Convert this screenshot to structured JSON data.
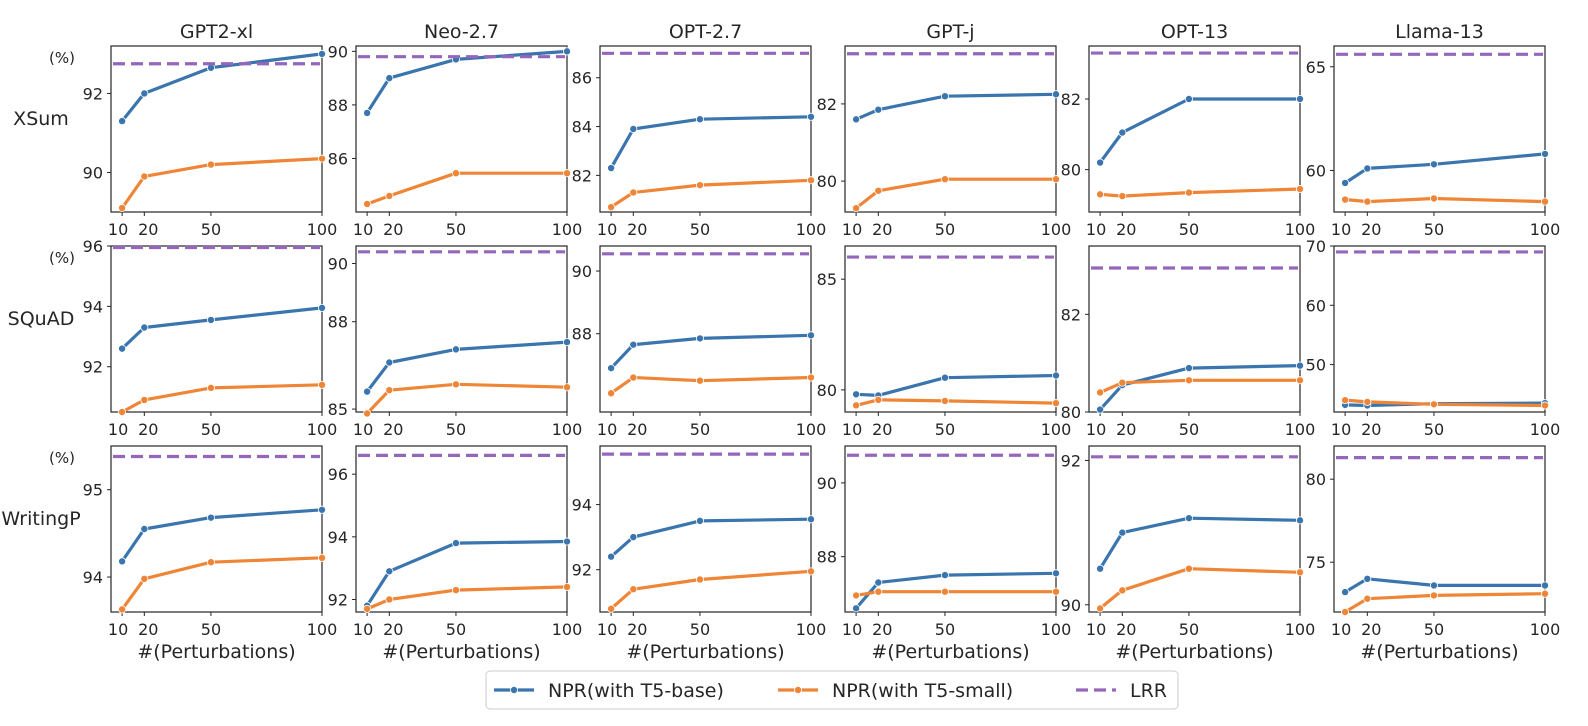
{
  "colors": {
    "npr_base": "#3a75ae",
    "npr_small": "#ef8536",
    "lrr": "#9467bd",
    "frame": "#262626"
  },
  "columns": [
    "GPT2-xl",
    "Neo-2.7",
    "OPT-2.7",
    "GPT-j",
    "OPT-13",
    "Llama-13"
  ],
  "rows": [
    "XSum",
    "SQuAD",
    "WritingP"
  ],
  "x_ticks": [
    "10",
    "20",
    "50",
    "100"
  ],
  "unit_label": "(%)",
  "xlabel": "#(Perturbations)",
  "legend": {
    "placement": "bottom-center",
    "items": [
      {
        "key": "npr_base",
        "label": "NPR(with T5-base)",
        "style": "solid-marker"
      },
      {
        "key": "npr_small",
        "label": "NPR(with T5-small)",
        "style": "solid-marker"
      },
      {
        "key": "lrr",
        "label": "LRR",
        "style": "dashed"
      }
    ]
  },
  "chart_data": {
    "type": "line",
    "layout": "grid 3 rows x 6 columns",
    "x": [
      10,
      20,
      50,
      100
    ],
    "xlim": [
      5,
      100
    ],
    "xlabel": "#(Perturbations)",
    "panels": [
      {
        "row": "XSum",
        "column": "GPT2-xl",
        "ylim": [
          89.0,
          93.2
        ],
        "yticks": [
          90,
          92
        ],
        "show_unit": true,
        "series": [
          {
            "name": "NPR(with T5-base)",
            "values": [
              91.3,
              92.0,
              92.65,
              93.0
            ]
          },
          {
            "name": "NPR(with T5-small)",
            "values": [
              89.1,
              89.9,
              90.2,
              90.35
            ]
          },
          {
            "name": "LRR",
            "constant": 92.75
          }
        ]
      },
      {
        "row": "XSum",
        "column": "Neo-2.7",
        "ylim": [
          84.0,
          90.2
        ],
        "yticks": [
          86,
          88,
          90
        ],
        "show_unit": false,
        "series": [
          {
            "name": "NPR(with T5-base)",
            "values": [
              87.7,
              89.0,
              89.7,
              90.0
            ]
          },
          {
            "name": "NPR(with T5-small)",
            "values": [
              84.3,
              84.6,
              85.45,
              85.45
            ]
          },
          {
            "name": "LRR",
            "constant": 89.8
          }
        ]
      },
      {
        "row": "XSum",
        "column": "OPT-2.7",
        "ylim": [
          80.5,
          87.3
        ],
        "yticks": [
          82,
          84,
          86
        ],
        "show_unit": false,
        "series": [
          {
            "name": "NPR(with T5-base)",
            "values": [
              82.3,
              83.9,
              84.3,
              84.4
            ]
          },
          {
            "name": "NPR(with T5-small)",
            "values": [
              80.7,
              81.3,
              81.6,
              81.8
            ]
          },
          {
            "name": "LRR",
            "constant": 87.0
          }
        ]
      },
      {
        "row": "XSum",
        "column": "GPT-j",
        "ylim": [
          79.2,
          83.5
        ],
        "yticks": [
          80,
          82
        ],
        "show_unit": false,
        "series": [
          {
            "name": "NPR(with T5-base)",
            "values": [
              81.6,
              81.85,
              82.2,
              82.25
            ]
          },
          {
            "name": "NPR(with T5-small)",
            "values": [
              79.3,
              79.75,
              80.05,
              80.05
            ]
          },
          {
            "name": "LRR",
            "constant": 83.3
          }
        ]
      },
      {
        "row": "XSum",
        "column": "OPT-13",
        "ylim": [
          78.8,
          83.5
        ],
        "yticks": [
          80,
          82
        ],
        "show_unit": false,
        "series": [
          {
            "name": "NPR(with T5-base)",
            "values": [
              80.2,
              81.05,
              82.0,
              82.0
            ]
          },
          {
            "name": "NPR(with T5-small)",
            "values": [
              79.3,
              79.25,
              79.35,
              79.45
            ]
          },
          {
            "name": "LRR",
            "constant": 83.3
          }
        ]
      },
      {
        "row": "XSum",
        "column": "Llama-13",
        "ylim": [
          58.0,
          66.0
        ],
        "yticks": [
          60,
          65
        ],
        "show_unit": false,
        "series": [
          {
            "name": "NPR(with T5-base)",
            "values": [
              59.4,
              60.1,
              60.3,
              60.8
            ]
          },
          {
            "name": "NPR(with T5-small)",
            "values": [
              58.6,
              58.5,
              58.65,
              58.5
            ]
          },
          {
            "name": "LRR",
            "constant": 65.6
          }
        ]
      },
      {
        "row": "SQuAD",
        "column": "GPT2-xl",
        "ylim": [
          90.5,
          96.0
        ],
        "yticks": [
          92,
          94,
          96
        ],
        "show_unit": true,
        "series": [
          {
            "name": "NPR(with T5-base)",
            "values": [
              92.6,
              93.3,
              93.55,
              93.95
            ]
          },
          {
            "name": "NPR(with T5-small)",
            "values": [
              90.5,
              90.9,
              91.3,
              91.4
            ]
          },
          {
            "name": "LRR",
            "constant": 95.95
          }
        ]
      },
      {
        "row": "SQuAD",
        "column": "Neo-2.7",
        "ylim": [
          84.9,
          90.6
        ],
        "yticks": [
          85,
          88,
          90
        ],
        "show_unit": false,
        "series": [
          {
            "name": "NPR(with T5-base)",
            "values": [
              85.6,
              86.6,
              87.05,
              87.3
            ]
          },
          {
            "name": "NPR(with T5-small)",
            "values": [
              84.85,
              85.65,
              85.85,
              85.75
            ]
          },
          {
            "name": "LRR",
            "constant": 90.4
          }
        ]
      },
      {
        "row": "SQuAD",
        "column": "OPT-2.7",
        "ylim": [
          85.5,
          90.8
        ],
        "yticks": [
          88,
          90
        ],
        "show_unit": false,
        "series": [
          {
            "name": "NPR(with T5-base)",
            "values": [
              86.9,
              87.65,
              87.85,
              87.95
            ]
          },
          {
            "name": "NPR(with T5-small)",
            "values": [
              86.1,
              86.6,
              86.5,
              86.6
            ]
          },
          {
            "name": "LRR",
            "constant": 90.55
          }
        ]
      },
      {
        "row": "SQuAD",
        "column": "GPT-j",
        "ylim": [
          79.0,
          86.5
        ],
        "yticks": [
          80,
          85
        ],
        "show_unit": false,
        "series": [
          {
            "name": "NPR(with T5-base)",
            "values": [
              79.8,
              79.75,
              80.55,
              80.65
            ]
          },
          {
            "name": "NPR(with T5-small)",
            "values": [
              79.3,
              79.55,
              79.5,
              79.4
            ]
          },
          {
            "name": "LRR",
            "constant": 86.0
          }
        ]
      },
      {
        "row": "SQuAD",
        "column": "OPT-13",
        "ylim": [
          80.0,
          83.4
        ],
        "yticks": [
          80,
          82
        ],
        "show_unit": false,
        "series": [
          {
            "name": "NPR(with T5-base)",
            "values": [
              80.05,
              80.55,
              80.9,
              80.95
            ]
          },
          {
            "name": "NPR(with T5-small)",
            "values": [
              80.4,
              80.6,
              80.65,
              80.65
            ]
          },
          {
            "name": "LRR",
            "constant": 82.95
          }
        ]
      },
      {
        "row": "SQuAD",
        "column": "Llama-13",
        "ylim": [
          42.0,
          70.0
        ],
        "yticks": [
          50,
          60,
          70
        ],
        "show_unit": false,
        "series": [
          {
            "name": "NPR(with T5-base)",
            "values": [
              43.2,
              43.1,
              43.4,
              43.5
            ]
          },
          {
            "name": "NPR(with T5-small)",
            "values": [
              44.0,
              43.7,
              43.3,
              43.1
            ]
          },
          {
            "name": "LRR",
            "constant": 69.0
          }
        ]
      },
      {
        "row": "WritingP",
        "column": "GPT2-xl",
        "ylim": [
          93.6,
          95.5
        ],
        "yticks": [
          94,
          95
        ],
        "show_unit": true,
        "series": [
          {
            "name": "NPR(with T5-base)",
            "values": [
              94.18,
              94.55,
              94.68,
              94.77
            ]
          },
          {
            "name": "NPR(with T5-small)",
            "values": [
              93.63,
              93.98,
              94.17,
              94.22
            ]
          },
          {
            "name": "LRR",
            "constant": 95.38
          }
        ]
      },
      {
        "row": "WritingP",
        "column": "Neo-2.7",
        "ylim": [
          91.6,
          96.9
        ],
        "yticks": [
          92,
          94,
          96
        ],
        "show_unit": false,
        "series": [
          {
            "name": "NPR(with T5-base)",
            "values": [
              91.8,
              92.9,
              93.8,
              93.85
            ]
          },
          {
            "name": "NPR(with T5-small)",
            "values": [
              91.7,
              92.0,
              92.3,
              92.4
            ]
          },
          {
            "name": "LRR",
            "constant": 96.6
          }
        ]
      },
      {
        "row": "WritingP",
        "column": "OPT-2.7",
        "ylim": [
          90.7,
          95.8
        ],
        "yticks": [
          92,
          94
        ],
        "show_unit": false,
        "series": [
          {
            "name": "NPR(with T5-base)",
            "values": [
              92.4,
              93.0,
              93.5,
              93.55
            ]
          },
          {
            "name": "NPR(with T5-small)",
            "values": [
              90.8,
              91.4,
              91.7,
              91.95
            ]
          },
          {
            "name": "LRR",
            "constant": 95.55
          }
        ]
      },
      {
        "row": "WritingP",
        "column": "GPT-j",
        "ylim": [
          86.5,
          91.0
        ],
        "yticks": [
          88,
          90
        ],
        "show_unit": false,
        "series": [
          {
            "name": "NPR(with T5-base)",
            "values": [
              86.6,
              87.3,
              87.5,
              87.55
            ]
          },
          {
            "name": "NPR(with T5-small)",
            "values": [
              86.95,
              87.05,
              87.05,
              87.05
            ]
          },
          {
            "name": "LRR",
            "constant": 90.75
          }
        ]
      },
      {
        "row": "WritingP",
        "column": "OPT-13",
        "ylim": [
          89.9,
          92.2
        ],
        "yticks": [
          90,
          92
        ],
        "show_unit": false,
        "series": [
          {
            "name": "NPR(with T5-base)",
            "values": [
              90.5,
              91.0,
              91.2,
              91.17
            ]
          },
          {
            "name": "NPR(with T5-small)",
            "values": [
              89.95,
              90.2,
              90.5,
              90.45
            ]
          },
          {
            "name": "LRR",
            "constant": 92.05
          }
        ]
      },
      {
        "row": "WritingP",
        "column": "Llama-13",
        "ylim": [
          72.0,
          82.0
        ],
        "yticks": [
          75,
          80
        ],
        "show_unit": false,
        "series": [
          {
            "name": "NPR(with T5-base)",
            "values": [
              73.2,
              74.0,
              73.6,
              73.6
            ]
          },
          {
            "name": "NPR(with T5-small)",
            "values": [
              72.0,
              72.8,
              73.0,
              73.1
            ]
          },
          {
            "name": "LRR",
            "constant": 81.3
          }
        ]
      }
    ]
  }
}
